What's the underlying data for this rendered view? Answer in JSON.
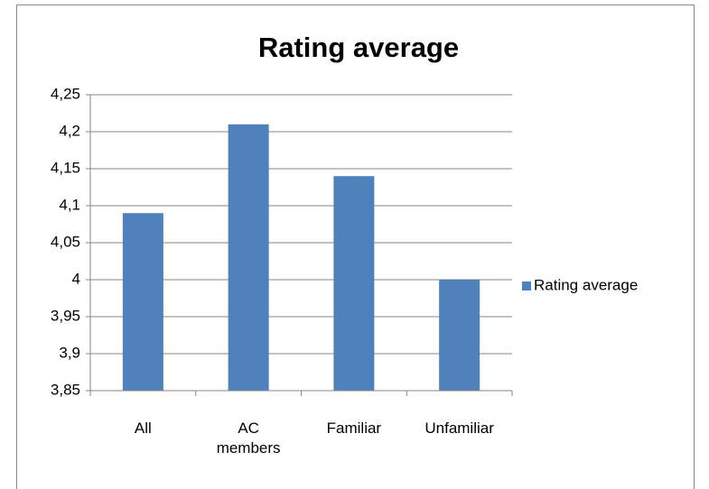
{
  "chart_data": {
    "type": "bar",
    "title": "Rating average",
    "categories": [
      "All",
      "AC members",
      "Familiar",
      "Unfamiliar"
    ],
    "series": [
      {
        "name": "Rating average",
        "color": "#4f81bd",
        "values": [
          4.09,
          4.21,
          4.14,
          4
        ]
      }
    ],
    "ylim": [
      3.85,
      4.25
    ],
    "yticks": [
      {
        "value": 3.85,
        "label": "3,85"
      },
      {
        "value": 3.9,
        "label": "3,9"
      },
      {
        "value": 3.95,
        "label": "3,95"
      },
      4,
      {
        "value": 4.05,
        "label": "4,05"
      },
      {
        "value": 4.1,
        "label": "4,1"
      },
      {
        "value": 4.15,
        "label": "4,15"
      },
      {
        "value": 4.2,
        "label": "4,2"
      },
      {
        "value": 4.25,
        "label": "4,25"
      }
    ],
    "grid": true,
    "legend": "right"
  }
}
